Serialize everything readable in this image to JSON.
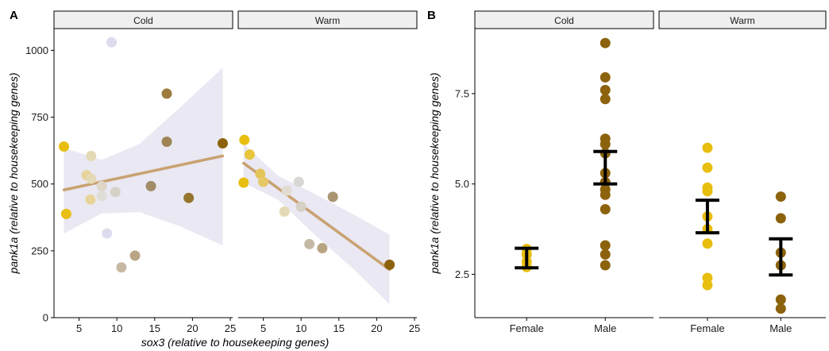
{
  "panel_a": {
    "letter": "A",
    "ylabel": "pank1a (relative to housekeeping genes)",
    "xlabel": "sox3 (relative to housekeeping genes)",
    "yticks": [
      "0",
      "250",
      "500",
      "750",
      "1000"
    ],
    "xticks": [
      "5",
      "10",
      "15",
      "20",
      "25"
    ],
    "facets": [
      "Cold",
      "Warm"
    ]
  },
  "panel_b": {
    "letter": "B",
    "ylabel": "pank1a (relative to housekeeping genes)",
    "yticks": [
      "2.5",
      "5.0",
      "7.5"
    ],
    "facets": [
      "Cold",
      "Warm"
    ],
    "xcats": [
      "Female",
      "Male"
    ]
  },
  "colors": {
    "female": "#E8BE0F",
    "male": "#8C620D",
    "ribbon": "#E9E8F3",
    "fit_line": "#C9A271",
    "strip_fill": "#EFEFEF",
    "error_bar": "#000000"
  },
  "chart_data": [
    {
      "type": "scatter",
      "panel": "A",
      "xlim": [
        2,
        25
      ],
      "ylim": [
        0,
        1100
      ],
      "grid": false,
      "facets": [
        {
          "name": "Cold",
          "points": [
            {
              "x": 3.0,
              "y": 640,
              "color": "#E8BE0F"
            },
            {
              "x": 3.3,
              "y": 388,
              "color": "#E8BE0F"
            },
            {
              "x": 6.0,
              "y": 533,
              "color": "#E8D49A"
            },
            {
              "x": 6.6,
              "y": 605,
              "color": "#E5D9B5"
            },
            {
              "x": 6.6,
              "y": 520,
              "color": "#E5D9B5"
            },
            {
              "x": 6.5,
              "y": 442,
              "color": "#E8D49A"
            },
            {
              "x": 8.0,
              "y": 492,
              "color": "#DED6C6"
            },
            {
              "x": 8.0,
              "y": 455,
              "color": "#E0DDD6"
            },
            {
              "x": 8.7,
              "y": 315,
              "color": "#DDDCEF"
            },
            {
              "x": 9.3,
              "y": 1030,
              "color": "#DDDCEF"
            },
            {
              "x": 9.8,
              "y": 470,
              "color": "#D6D1C5"
            },
            {
              "x": 10.6,
              "y": 188,
              "color": "#C7B8A2"
            },
            {
              "x": 12.4,
              "y": 232,
              "color": "#B9A584"
            },
            {
              "x": 14.5,
              "y": 492,
              "color": "#A28C68"
            },
            {
              "x": 16.6,
              "y": 838,
              "color": "#9D7B3D"
            },
            {
              "x": 16.6,
              "y": 658,
              "color": "#9F8455"
            },
            {
              "x": 19.5,
              "y": 448,
              "color": "#95742C"
            },
            {
              "x": 24.0,
              "y": 652,
              "color": "#8C620D"
            }
          ],
          "fit": [
            {
              "x": 3.0,
              "y": 478
            },
            {
              "x": 24.0,
              "y": 605
            }
          ],
          "ribbon_upper": [
            {
              "x": 3.0,
              "y": 635
            },
            {
              "x": 8.0,
              "y": 590
            },
            {
              "x": 13.0,
              "y": 650
            },
            {
              "x": 18.5,
              "y": 790
            },
            {
              "x": 24.0,
              "y": 935
            }
          ],
          "ribbon_lower": [
            {
              "x": 3.0,
              "y": 315
            },
            {
              "x": 8.0,
              "y": 390
            },
            {
              "x": 13.0,
              "y": 395
            },
            {
              "x": 18.5,
              "y": 340
            },
            {
              "x": 24.0,
              "y": 270
            }
          ]
        },
        {
          "name": "Warm",
          "points": [
            {
              "x": 2.5,
              "y": 665,
              "color": "#E8BE0F"
            },
            {
              "x": 3.2,
              "y": 610,
              "color": "#E8C53A"
            },
            {
              "x": 2.4,
              "y": 505,
              "color": "#E8BE0F"
            },
            {
              "x": 4.6,
              "y": 538,
              "color": "#E6C558"
            },
            {
              "x": 5.0,
              "y": 508,
              "color": "#E7C866"
            },
            {
              "x": 7.8,
              "y": 397,
              "color": "#E5D9B5"
            },
            {
              "x": 8.1,
              "y": 475,
              "color": "#E2DCD0"
            },
            {
              "x": 9.7,
              "y": 508,
              "color": "#D9D6D3"
            },
            {
              "x": 10.0,
              "y": 415,
              "color": "#D6D0C4"
            },
            {
              "x": 11.1,
              "y": 275,
              "color": "#C6B9A4"
            },
            {
              "x": 12.8,
              "y": 260,
              "color": "#B8A483"
            },
            {
              "x": 14.2,
              "y": 452,
              "color": "#A99574"
            },
            {
              "x": 21.7,
              "y": 198,
              "color": "#8C620D"
            }
          ],
          "fit": [
            {
              "x": 2.4,
              "y": 578
            },
            {
              "x": 21.7,
              "y": 180
            }
          ],
          "ribbon_upper": [
            {
              "x": 2.4,
              "y": 650
            },
            {
              "x": 7.0,
              "y": 530
            },
            {
              "x": 12.0,
              "y": 460
            },
            {
              "x": 17.0,
              "y": 385
            },
            {
              "x": 21.7,
              "y": 310
            }
          ],
          "ribbon_lower": [
            {
              "x": 2.4,
              "y": 505
            },
            {
              "x": 7.0,
              "y": 440
            },
            {
              "x": 12.0,
              "y": 305
            },
            {
              "x": 17.0,
              "y": 180
            },
            {
              "x": 21.7,
              "y": 50
            }
          ]
        }
      ]
    },
    {
      "type": "scatter",
      "panel": "B",
      "categories": [
        "Female",
        "Male"
      ],
      "ylim": [
        1.3,
        9.3
      ],
      "grid": false,
      "facets": [
        {
          "name": "Cold",
          "groups": [
            {
              "category": "Female",
              "color": "#E8BE0F",
              "values": [
                3.2,
                3.05,
                2.85,
                2.7
              ],
              "error_bar": {
                "low": 2.68,
                "high": 3.22
              }
            },
            {
              "category": "Male",
              "color": "#8C620D",
              "values": [
                8.9,
                7.95,
                7.6,
                7.35,
                6.25,
                6.1,
                5.85,
                5.3,
                5.05,
                4.85,
                4.7,
                4.3,
                3.3,
                3.05,
                2.75
              ],
              "error_bar": {
                "low": 5.0,
                "high": 5.9
              }
            }
          ]
        },
        {
          "name": "Warm",
          "groups": [
            {
              "category": "Female",
              "color": "#E8BE0F",
              "values": [
                6.0,
                5.45,
                4.9,
                4.8,
                4.1,
                3.75,
                3.35,
                2.4,
                2.2
              ],
              "error_bar": {
                "low": 3.65,
                "high": 4.55
              }
            },
            {
              "category": "Male",
              "color": "#8C620D",
              "values": [
                4.65,
                4.05,
                3.1,
                2.75,
                1.8,
                1.55
              ],
              "error_bar": {
                "low": 2.48,
                "high": 3.48
              }
            }
          ]
        }
      ]
    }
  ]
}
